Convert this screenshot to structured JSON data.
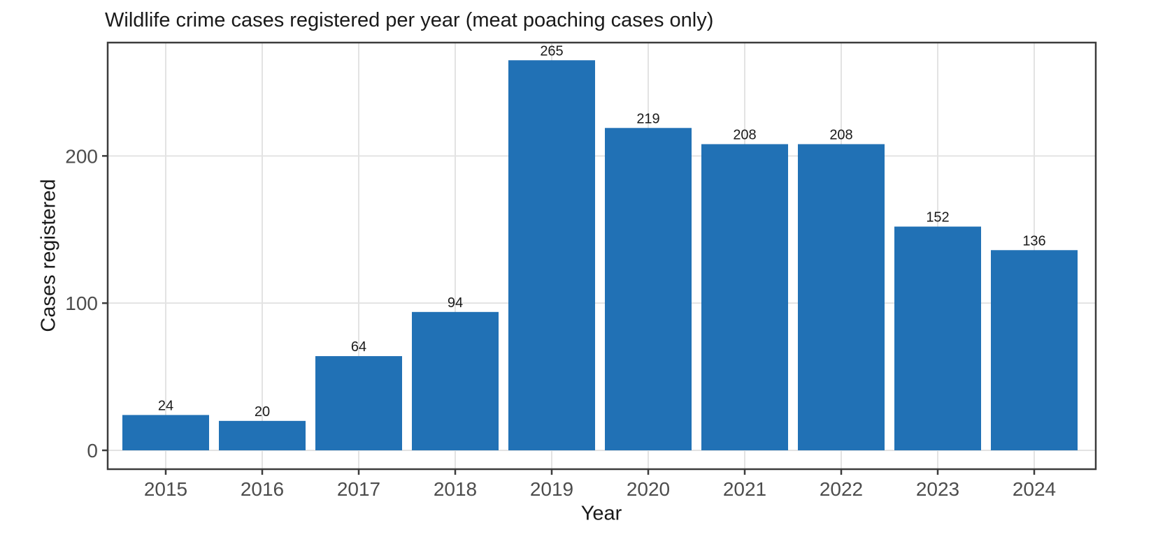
{
  "chart_data": {
    "type": "bar",
    "title": "Wildlife crime cases registered per year (meat poaching cases only)",
    "xlabel": "Year",
    "ylabel": "Cases registered",
    "categories": [
      "2015",
      "2016",
      "2017",
      "2018",
      "2019",
      "2020",
      "2021",
      "2022",
      "2023",
      "2024"
    ],
    "values": [
      24,
      20,
      64,
      94,
      265,
      219,
      208,
      208,
      152,
      136
    ],
    "bar_value_labels": [
      "24",
      "20",
      "64",
      "94",
      "265",
      "219",
      "208",
      "208",
      "152",
      "136"
    ],
    "yticks": [
      0,
      100,
      200
    ],
    "ytick_labels": [
      "0",
      "100",
      "200"
    ],
    "ylim": [
      0,
      277
    ],
    "grid": true,
    "legend": false,
    "colors": {
      "bar": "#2171b5",
      "grid": "#e3e3e3",
      "panel_border": "#3c3c3c",
      "tick_mark": "#3c3c3c",
      "tick_label": "#4d4d4d",
      "text": "#1a1a1a",
      "background": "#ffffff"
    }
  }
}
